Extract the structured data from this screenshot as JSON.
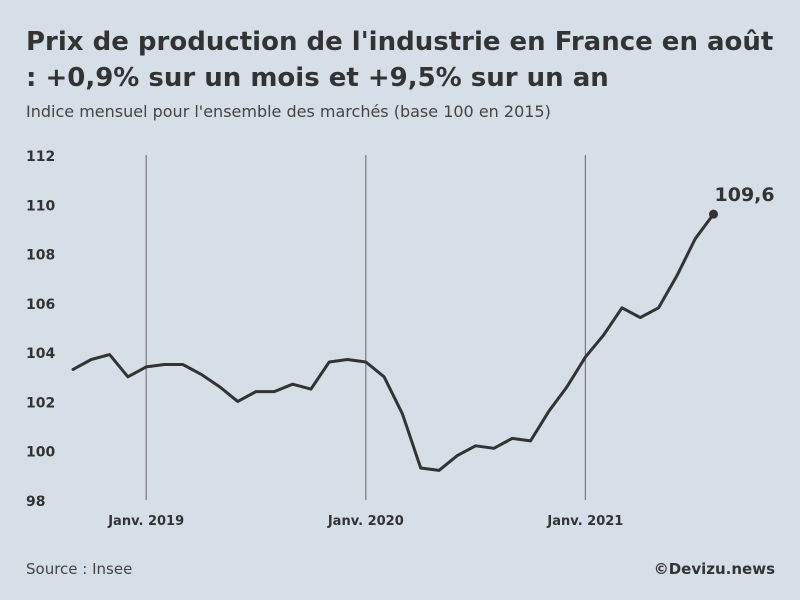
{
  "title": "Prix de production de l'industrie en France en août : +0,9% sur un mois et +9,5% sur un an",
  "subtitle": "Indice mensuel pour l'ensemble des marchés (base 100 en 2015)",
  "source": "Source : Insee",
  "credit": "©Devizu.news",
  "colors": {
    "background": "#d6dfe8",
    "line": "#333333",
    "gridline": "#7a7a7a"
  },
  "chart_data": {
    "type": "line",
    "title": "",
    "xlabel": "",
    "ylabel": "",
    "x": [
      "2018-09",
      "2018-10",
      "2018-11",
      "2018-12",
      "2019-01",
      "2019-02",
      "2019-03",
      "2019-04",
      "2019-05",
      "2019-06",
      "2019-07",
      "2019-08",
      "2019-09",
      "2019-10",
      "2019-11",
      "2019-12",
      "2020-01",
      "2020-02",
      "2020-03",
      "2020-04",
      "2020-05",
      "2020-06",
      "2020-07",
      "2020-08",
      "2020-09",
      "2020-10",
      "2020-11",
      "2020-12",
      "2021-01",
      "2021-02",
      "2021-03",
      "2021-04",
      "2021-05",
      "2021-06",
      "2021-07",
      "2021-08"
    ],
    "values": [
      103.3,
      103.7,
      103.9,
      103.0,
      103.4,
      103.5,
      103.5,
      103.1,
      102.6,
      102.0,
      102.4,
      102.4,
      102.7,
      102.5,
      103.6,
      103.7,
      103.6,
      103.0,
      101.5,
      99.3,
      99.2,
      99.8,
      100.2,
      100.1,
      100.5,
      100.4,
      101.6,
      102.6,
      103.8,
      104.7,
      105.8,
      105.4,
      105.8,
      107.1,
      108.6,
      109.6
    ],
    "ylim": [
      98,
      112
    ],
    "yticks": [
      "98",
      "100",
      "102",
      "104",
      "106",
      "108",
      "110",
      "112"
    ],
    "ytick_values": [
      98,
      100,
      102,
      104,
      106,
      108,
      110,
      112
    ],
    "xtick_labels": [
      "Janv. 2019",
      "Janv. 2020",
      "Janv. 2021"
    ],
    "xtick_indices": [
      4,
      16,
      28
    ],
    "end_label": "109,6",
    "grid": "vertical lines at January of each year",
    "legend": "none"
  }
}
